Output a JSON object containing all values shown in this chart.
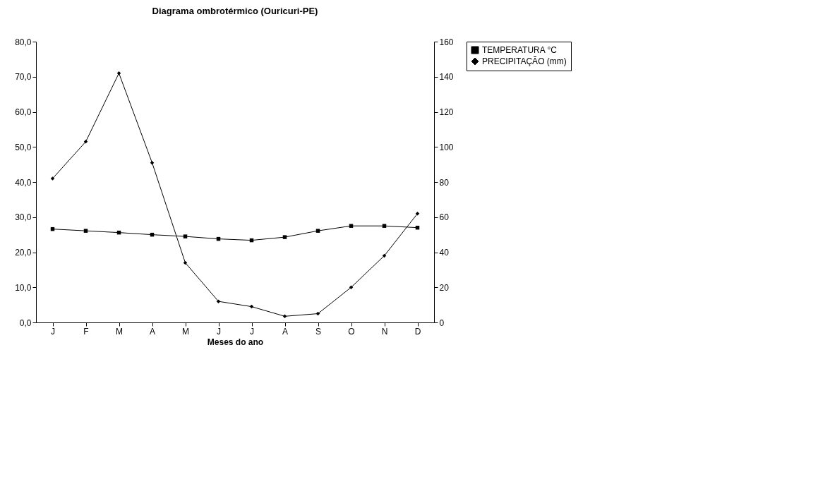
{
  "chart_data": {
    "type": "line",
    "title": "Diagrama ombrotérmico (Ouricuri-PE)",
    "xlabel": "Meses do ano",
    "categories": [
      "J",
      "F",
      "M",
      "A",
      "M",
      "J",
      "J",
      "A",
      "S",
      "O",
      "N",
      "D"
    ],
    "series": [
      {
        "name": "TEMPERATURA °C",
        "color": "#000000",
        "marker": "square",
        "values": [
          26.6,
          26.1,
          25.6,
          25.0,
          24.5,
          23.8,
          23.4,
          24.3,
          26.1,
          27.5,
          27.5,
          27.0
        ]
      },
      {
        "name": "PRECIPITAÇÃO (mm)",
        "color": "#000000",
        "marker": "diamond",
        "axis": "y2",
        "values": [
          82,
          103,
          142,
          91,
          34,
          12,
          9,
          3.5,
          5,
          20,
          38,
          62
        ]
      }
    ],
    "ylim": [
      0,
      80
    ],
    "yticks": [
      {
        "value": 0,
        "label": "0,0"
      },
      {
        "value": 10,
        "label": "10,0"
      },
      {
        "value": 20,
        "label": "20,0"
      },
      {
        "value": 30,
        "label": "30,0"
      },
      {
        "value": 40,
        "label": "40,0"
      },
      {
        "value": 50,
        "label": "50,0"
      },
      {
        "value": 60,
        "label": "60,0"
      },
      {
        "value": 70,
        "label": "70,0"
      },
      {
        "value": 80,
        "label": "80,0"
      }
    ],
    "y2lim": [
      0,
      160
    ],
    "y2ticks": [
      0,
      20,
      40,
      60,
      80,
      100,
      120,
      140,
      160
    ],
    "grid": false,
    "legend": "right"
  }
}
